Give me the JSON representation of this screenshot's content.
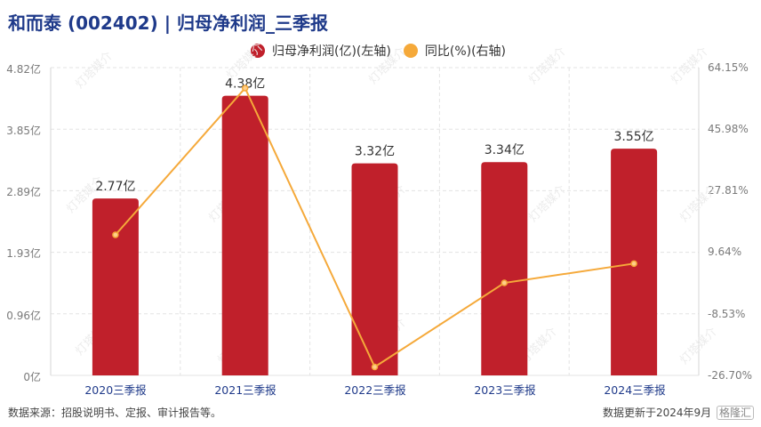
{
  "header": {
    "title": "和而泰 (002402) | 归母净利润_三季报"
  },
  "legend": [
    {
      "label": "归母净利润(亿)(左轴)",
      "color": "#c0202b"
    },
    {
      "label": "同比(%)(右轴)",
      "color": "#f5a93a"
    }
  ],
  "footer": {
    "source": "数据来源：招股说明书、定报、审计报告等。",
    "updated": "数据更新于2024年9月",
    "logo_text": "格隆汇"
  },
  "watermark": "灯塔媒介",
  "colors": {
    "bar": "#c0202b",
    "line": "#f5a93a",
    "title": "#1f3a8a",
    "axis_text": "#7a7a7a",
    "grid": "#e3e3e3"
  },
  "chart_data": {
    "type": "bar",
    "title": "和而泰 (002402) | 归母净利润_三季报",
    "categories": [
      "2020三季报",
      "2021三季报",
      "2022三季报",
      "2023三季报",
      "2024三季报"
    ],
    "series": [
      {
        "name": "归母净利润(亿)(左轴)",
        "type": "bar",
        "axis": "left",
        "values": [
          2.77,
          4.38,
          3.32,
          3.34,
          3.55
        ],
        "labels": [
          "2.77亿",
          "4.38亿",
          "3.32亿",
          "3.34亿",
          "3.55亿"
        ]
      },
      {
        "name": "同比(%)(右轴)",
        "type": "line",
        "axis": "right",
        "values": [
          14.8,
          58.1,
          -24.2,
          0.6,
          6.3
        ]
      }
    ],
    "y_left": {
      "ticks": [
        "0亿",
        "0.96亿",
        "1.93亿",
        "2.89亿",
        "3.85亿",
        "4.82亿"
      ],
      "range": [
        0,
        4.82
      ]
    },
    "y_right": {
      "ticks": [
        "-26.70%",
        "-8.53%",
        "9.64%",
        "27.81%",
        "45.98%",
        "64.15%"
      ],
      "range": [
        -26.7,
        64.15
      ]
    },
    "xlabel": "",
    "ylabel": "",
    "grid": true,
    "legend_position": "top"
  }
}
